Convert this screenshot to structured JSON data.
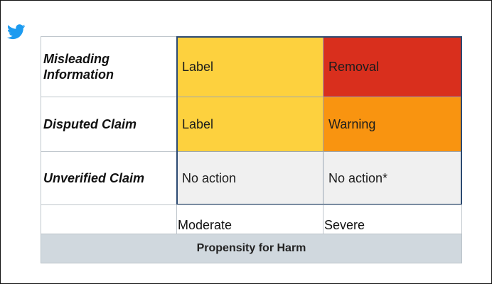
{
  "logo": "twitter-bird-icon",
  "colors": {
    "label": "#fdd13e",
    "removal": "#d92f1d",
    "warning": "#f99410",
    "no_action": "#f0f0f0",
    "axis": "#d0d8de",
    "twitter_blue": "#1d9bf0"
  },
  "rows": [
    {
      "label_line1": "Misleading",
      "label_line2": "Information",
      "moderate": "Label",
      "severe": "Removal"
    },
    {
      "label": "Disputed Claim",
      "moderate": "Label",
      "severe": "Warning"
    },
    {
      "label": "Unverified Claim",
      "moderate": "No action",
      "severe": "No action*"
    }
  ],
  "columns": {
    "moderate": "Moderate",
    "severe": "Severe"
  },
  "axis_label": "Propensity for Harm"
}
